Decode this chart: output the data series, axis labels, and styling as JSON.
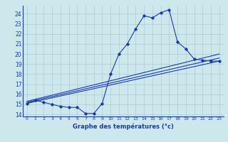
{
  "xlabel": "Graphe des températures (°c)",
  "bg_color": "#cce8ec",
  "grid_color": "#b0d4d8",
  "line_color": "#1a3ab0",
  "ylim": [
    13.8,
    24.8
  ],
  "xlim": [
    -0.5,
    23.5
  ],
  "yticks": [
    14,
    15,
    16,
    17,
    18,
    19,
    20,
    21,
    22,
    23,
    24
  ],
  "xticks": [
    0,
    1,
    2,
    3,
    4,
    5,
    6,
    7,
    8,
    9,
    10,
    11,
    12,
    13,
    14,
    15,
    16,
    17,
    18,
    19,
    20,
    21,
    22,
    23
  ],
  "series1_x": [
    0,
    1,
    2,
    3,
    4,
    5,
    6,
    7,
    8,
    9,
    10,
    11,
    12,
    13,
    14,
    15,
    16,
    17,
    18,
    19,
    20,
    21,
    22,
    23
  ],
  "series1_y": [
    15.1,
    15.4,
    15.2,
    15.0,
    14.8,
    14.7,
    14.7,
    14.1,
    14.1,
    15.1,
    18.0,
    20.0,
    21.0,
    22.5,
    23.8,
    23.6,
    24.1,
    24.4,
    21.2,
    20.5,
    19.5,
    19.4,
    19.3,
    19.3
  ],
  "series2_x": [
    0,
    23
  ],
  "series2_y": [
    15.1,
    19.3
  ],
  "series3_x": [
    0,
    23
  ],
  "series3_y": [
    15.2,
    19.6
  ],
  "series4_x": [
    0,
    23
  ],
  "series4_y": [
    15.3,
    20.0
  ]
}
